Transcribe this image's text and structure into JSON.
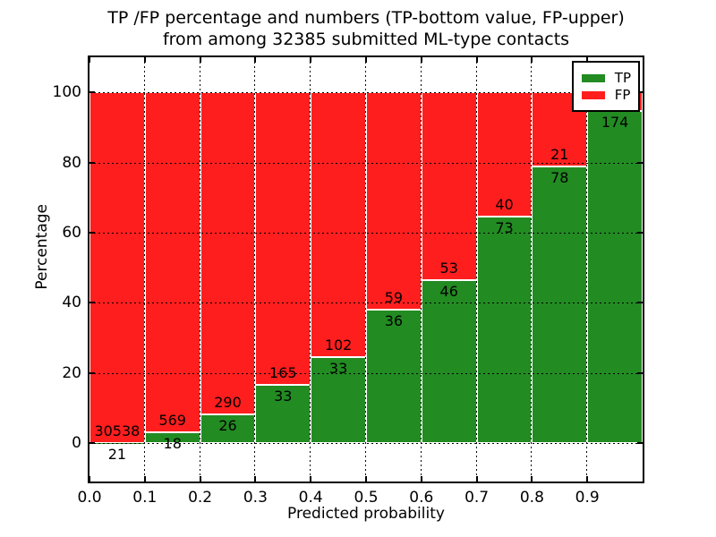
{
  "figure": {
    "title_line1": "TP /FP percentage and numbers (TP-bottom value, FP-upper)",
    "title_line2": "from among 32385 submitted ML-type contacts",
    "xlabel": "Predicted probability",
    "ylabel": "Percentage"
  },
  "chart_data": {
    "type": "bar",
    "stacked": true,
    "title": "TP /FP percentage and numbers (TP-bottom value, FP-upper) from among 32385 submitted ML-type contacts",
    "xlabel": "Predicted probability",
    "ylabel": "Percentage",
    "total_submitted_contacts": 32385,
    "categories": [
      "0.0-0.1",
      "0.1-0.2",
      "0.2-0.3",
      "0.3-0.4",
      "0.4-0.5",
      "0.5-0.6",
      "0.6-0.7",
      "0.7-0.8",
      "0.8-0.9",
      "0.9-1.0"
    ],
    "x_tick_labels": [
      "0.0",
      "0.1",
      "0.2",
      "0.3",
      "0.4",
      "0.5",
      "0.6",
      "0.7",
      "0.8",
      "0.9"
    ],
    "y_ticks": [
      0,
      20,
      40,
      60,
      80,
      100
    ],
    "xlim": [
      0,
      1
    ],
    "ylim": [
      -11,
      110
    ],
    "grid": "dotted",
    "bar_edge_color": "#ffffff",
    "series": [
      {
        "name": "TP",
        "color": "#228b22",
        "counts": [
          21,
          18,
          26,
          33,
          33,
          36,
          46,
          73,
          78,
          174
        ],
        "pct": [
          0.07,
          3.07,
          8.23,
          16.67,
          24.44,
          37.89,
          46.46,
          64.6,
          78.79,
          94.57
        ]
      },
      {
        "name": "FP",
        "color": "#ff1e1e",
        "counts": [
          30538,
          569,
          290,
          165,
          102,
          59,
          53,
          40,
          21,
          null
        ],
        "note": "FP count label of last bar hidden behind legend"
      }
    ],
    "legend": {
      "position": "upper right",
      "entries": [
        {
          "label": "TP",
          "color": "#228b22"
        },
        {
          "label": "FP",
          "color": "#ff1e1e"
        }
      ]
    }
  }
}
